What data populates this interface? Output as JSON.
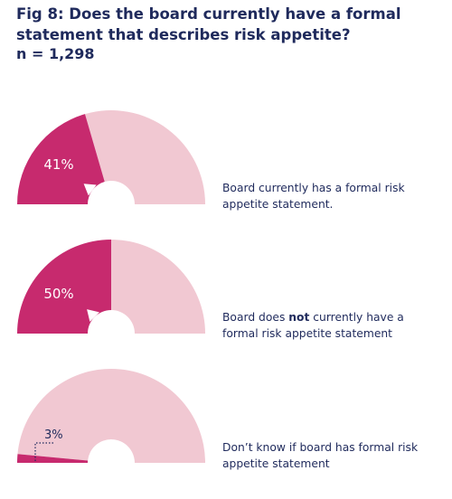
{
  "title": "Fig 8: Does the board currently have a formal statement that describes risk appetite?",
  "n_label": "n = 1,298",
  "colors": {
    "accent": "#c72a6e",
    "remainder": "#f1c8d2",
    "text": "#1f2a5c"
  },
  "chart_data": {
    "type": "pie",
    "style": "half-donut gauges",
    "total": 100,
    "series": [
      {
        "value": 41,
        "value_label": "41%",
        "legend": {
          "before": "Board currently has a formal risk appetite statement.",
          "bold": "",
          "after": ""
        }
      },
      {
        "value": 50,
        "value_label": "50%",
        "legend": {
          "before": "Board does ",
          "bold": "not",
          "after": " currently have a formal risk appetite statement"
        }
      },
      {
        "value": 3,
        "value_label": "3%",
        "legend": {
          "before": "Don’t know if board has formal risk appetite statement",
          "bold": "",
          "after": ""
        }
      }
    ]
  }
}
